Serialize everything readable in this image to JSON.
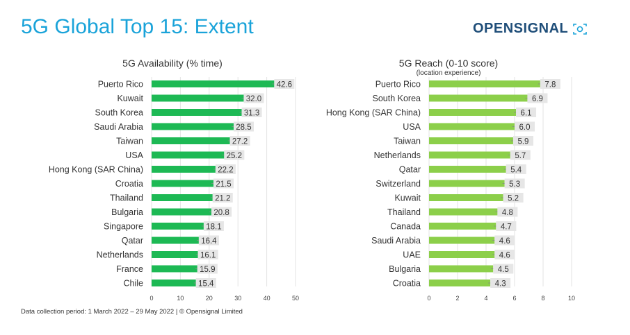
{
  "title": "5G Global Top 15: Extent",
  "logo": {
    "text": "OPENSIGNAL"
  },
  "footer": "Data collection period: 1 March 2022 – 29 May 2022 |  © Opensignal Limited",
  "colors": {
    "title": "#1aa3d9",
    "availability_bar": "#1db954",
    "reach_bar": "#8ccf4a",
    "label_box": "#e6e6e6",
    "logo": "#1f4e79"
  },
  "chart_data": [
    {
      "type": "bar",
      "orientation": "horizontal",
      "title": "5G Availability (% time)",
      "subtitle": "",
      "categories": [
        "Puerto Rico",
        "Kuwait",
        "South Korea",
        "Saudi Arabia",
        "Taiwan",
        "USA",
        "Hong Kong (SAR China)",
        "Croatia",
        "Thailand",
        "Bulgaria",
        "Singapore",
        "Qatar",
        "Netherlands",
        "France",
        "Chile"
      ],
      "values": [
        42.6,
        32.0,
        31.3,
        28.5,
        27.2,
        25.2,
        22.2,
        21.5,
        21.2,
        20.8,
        18.1,
        16.4,
        16.1,
        15.9,
        15.4
      ],
      "value_labels": [
        "42.6",
        "32.0",
        "31.3",
        "28.5",
        "27.2",
        "25.2",
        "22.2",
        "21.5",
        "21.2",
        "20.8",
        "18.1",
        "16.4",
        "16.1",
        "15.9",
        "15.4"
      ],
      "xlim": [
        0,
        50
      ],
      "ticks": [
        0,
        10,
        20,
        30,
        40,
        50
      ],
      "grid": true
    },
    {
      "type": "bar",
      "orientation": "horizontal",
      "title": "5G Reach (0-10 score)",
      "subtitle": "(location experience)",
      "categories": [
        "Puerto Rico",
        "South Korea",
        "Hong Kong (SAR China)",
        "USA",
        "Taiwan",
        "Netherlands",
        "Qatar",
        "Switzerland",
        "Kuwait",
        "Thailand",
        "Canada",
        "Saudi Arabia",
        "UAE",
        "Bulgaria",
        "Croatia"
      ],
      "values": [
        7.8,
        6.9,
        6.1,
        6.0,
        5.9,
        5.7,
        5.4,
        5.3,
        5.2,
        4.8,
        4.7,
        4.6,
        4.6,
        4.5,
        4.3
      ],
      "value_labels": [
        "7.8",
        "6.9",
        "6.1",
        "6.0",
        "5.9",
        "5.7",
        "5.4",
        "5.3",
        "5.2",
        "4.8",
        "4.7",
        "4.6",
        "4.6",
        "4.5",
        "4.3"
      ],
      "xlim": [
        0,
        10
      ],
      "ticks": [
        0,
        2,
        4,
        6,
        8,
        10
      ],
      "grid": true
    }
  ]
}
